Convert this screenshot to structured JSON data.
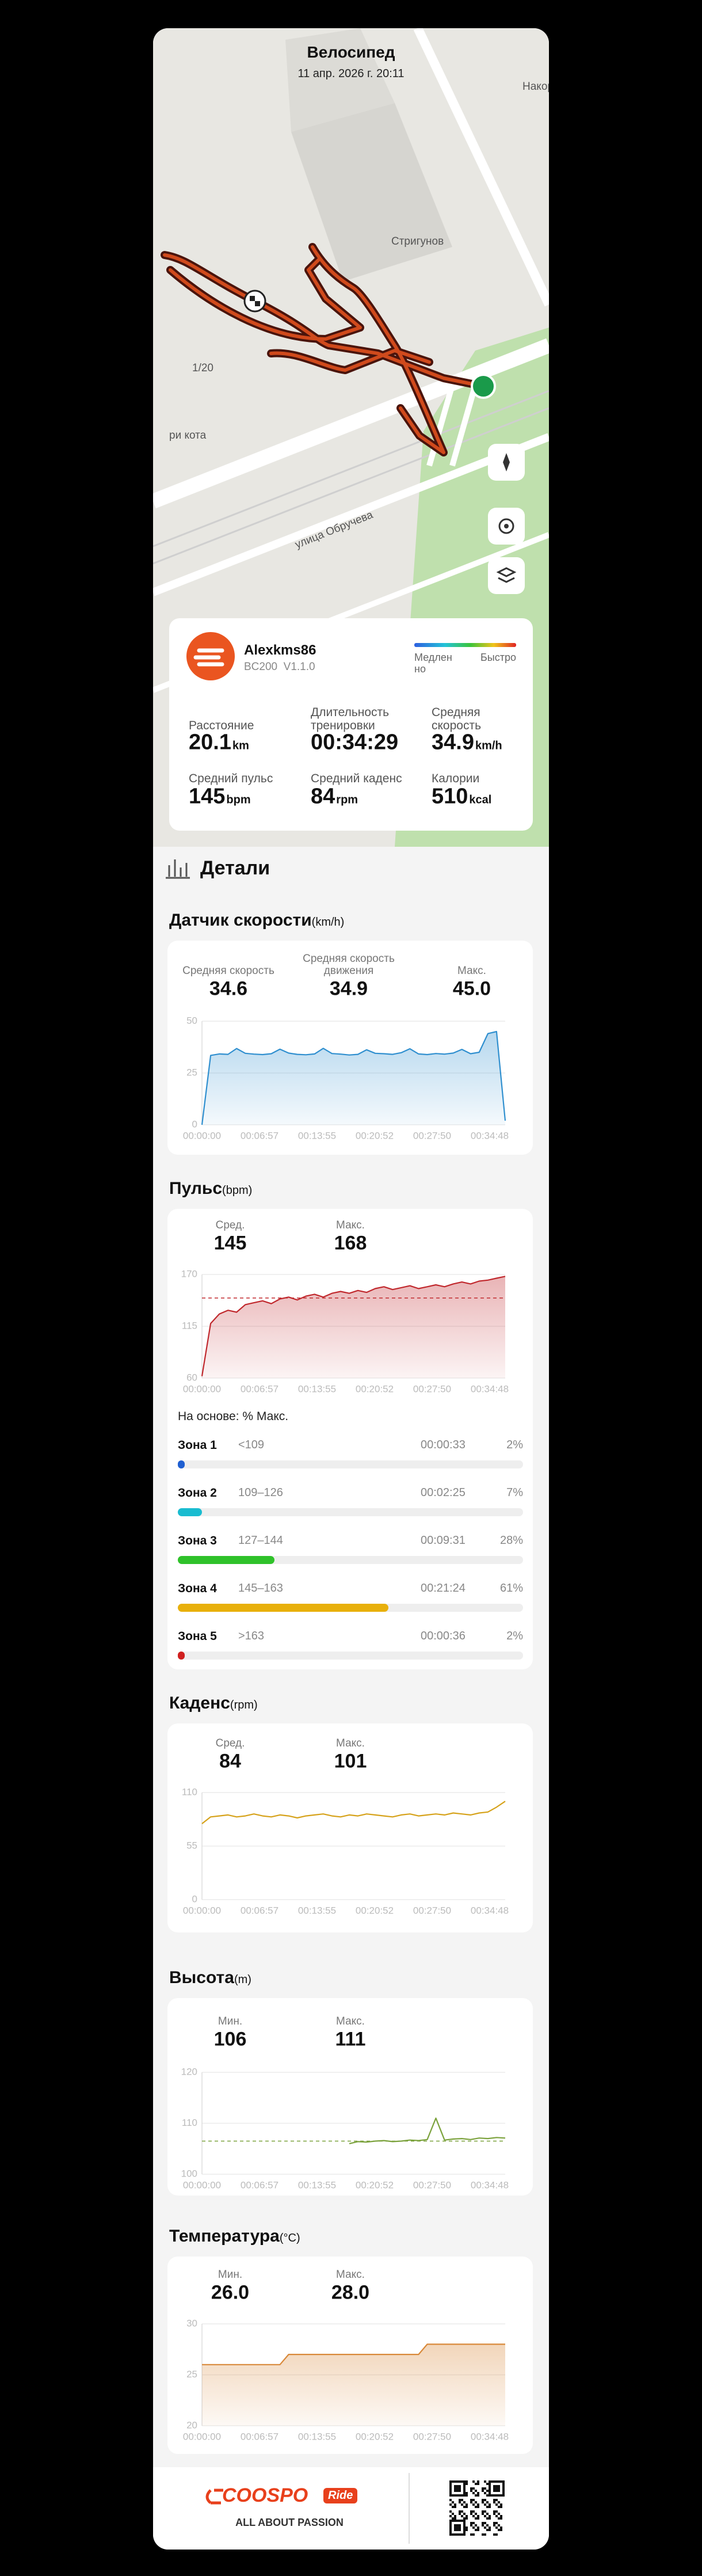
{
  "header": {
    "title": "Велосипед",
    "date": "11 апр. 2026 г. 20:11"
  },
  "map": {
    "labels": [
      "Стригунов",
      "улица Обручева",
      "1/20",
      "ри кота",
      "Накорм"
    ]
  },
  "summary": {
    "user": "Alexkms86",
    "device": "BC200  V1.1.0",
    "legend_slow": [
      "Медлен",
      "но"
    ],
    "legend_fast": "Быстро",
    "stats": [
      {
        "label": "Расстояние",
        "value": "20.1",
        "unit": "km"
      },
      {
        "label": "Длительность тренировки",
        "value": "00:34:29"
      },
      {
        "label": "Средняя скорость",
        "value": "34.9",
        "unit": "km/h"
      },
      {
        "label": "Средний пульс",
        "value": "145",
        "unit": "bpm"
      },
      {
        "label": "Средний каденс",
        "value": "84",
        "unit": "rpm"
      },
      {
        "label": "Калории",
        "value": "510",
        "unit": "kcal"
      }
    ]
  },
  "details_title": "Детали",
  "chart_data": [
    {
      "type": "area",
      "title": "Датчик скорости",
      "unit": "(km/h)",
      "color": "#2f8fcf",
      "stats": [
        {
          "label": "Средняя скорость",
          "value": "34.6"
        },
        {
          "label": "Средняя скорость движения",
          "value": "34.9"
        },
        {
          "label": "Макс.",
          "value": "45.0"
        }
      ],
      "x_labels": [
        "00:00:00",
        "00:06:57",
        "00:13:55",
        "00:20:52",
        "00:27:50",
        "00:34:48"
      ],
      "ylim": [
        0,
        50
      ],
      "yticks": [
        0,
        25,
        50
      ],
      "values": [
        0,
        33.5,
        34.2,
        34.0,
        36.8,
        34.5,
        34.1,
        33.9,
        34.3,
        36.5,
        34.6,
        34.0,
        33.8,
        34.2,
        36.9,
        34.4,
        34.1,
        33.7,
        34.0,
        36.2,
        34.5,
        34.3,
        34.0,
        34.8,
        36.7,
        34.2,
        33.9,
        34.4,
        34.1,
        34.6,
        36.4,
        34.3,
        35.0,
        44.0,
        45.0,
        2.0
      ]
    },
    {
      "type": "area",
      "title": "Пульс",
      "unit": "(bpm)",
      "color": "#c0282d",
      "stats": [
        {
          "label": "Сред.",
          "value": "145"
        },
        {
          "label": "Макс.",
          "value": "168"
        }
      ],
      "x_labels": [
        "00:00:00",
        "00:06:57",
        "00:13:55",
        "00:20:52",
        "00:27:50",
        "00:34:48"
      ],
      "ylim": [
        60,
        170
      ],
      "yticks": [
        60,
        115,
        170
      ],
      "ref_line": 145,
      "values": [
        62,
        118,
        128,
        132,
        130,
        138,
        140,
        142,
        139,
        144,
        146,
        143,
        147,
        149,
        146,
        150,
        152,
        150,
        153,
        151,
        155,
        157,
        154,
        156,
        158,
        155,
        157,
        159,
        157,
        160,
        162,
        160,
        163,
        164,
        166,
        168
      ]
    },
    {
      "type": "line",
      "title": "Каденс",
      "unit": "(rpm)",
      "color": "#d6a21a",
      "stats": [
        {
          "label": "Сред.",
          "value": "84"
        },
        {
          "label": "Макс.",
          "value": "101"
        }
      ],
      "x_labels": [
        "00:00:00",
        "00:06:57",
        "00:13:55",
        "00:20:52",
        "00:27:50",
        "00:34:48"
      ],
      "ylim": [
        0,
        110
      ],
      "yticks": [
        0,
        55,
        110
      ],
      "values": [
        78,
        85,
        86,
        87,
        85,
        86,
        88,
        86,
        85,
        87,
        86,
        84,
        86,
        87,
        88,
        86,
        85,
        87,
        86,
        88,
        87,
        86,
        85,
        87,
        88,
        86,
        87,
        88,
        87,
        89,
        88,
        87,
        89,
        90,
        95,
        101
      ]
    },
    {
      "type": "line",
      "title": "Высота",
      "unit": "(m)",
      "color": "#7ba23c",
      "stats": [
        {
          "label": "Мин.",
          "value": "106"
        },
        {
          "label": "Макс.",
          "value": "111"
        }
      ],
      "x_labels": [
        "00:00:00",
        "00:06:57",
        "00:13:55",
        "00:20:52",
        "00:27:50",
        "00:34:48"
      ],
      "ylim": [
        100,
        120
      ],
      "yticks": [
        100,
        110,
        120
      ],
      "ref_line": 106.5,
      "values": [
        null,
        null,
        null,
        null,
        null,
        null,
        null,
        null,
        null,
        null,
        null,
        null,
        null,
        null,
        null,
        null,
        null,
        106.0,
        106.4,
        106.3,
        106.5,
        106.6,
        106.4,
        106.5,
        106.7,
        106.6,
        106.8,
        111,
        106.7,
        106.9,
        107.0,
        106.8,
        107.1,
        107.0,
        107.2,
        107.1
      ]
    },
    {
      "type": "area",
      "title": "Температура",
      "unit": "(°C)",
      "color": "#d9893a",
      "stats": [
        {
          "label": "Мин.",
          "value": "26.0"
        },
        {
          "label": "Макс.",
          "value": "28.0"
        }
      ],
      "x_labels": [
        "00:00:00",
        "00:06:57",
        "00:13:55",
        "00:20:52",
        "00:27:50",
        "00:34:48"
      ],
      "ylim": [
        20,
        30
      ],
      "yticks": [
        20,
        25,
        30
      ],
      "values": [
        26,
        26,
        26,
        26,
        26,
        26,
        26,
        26,
        26,
        26,
        27,
        27,
        27,
        27,
        27,
        27,
        27,
        27,
        27,
        27,
        27,
        27,
        27,
        27,
        27,
        27,
        28,
        28,
        28,
        28,
        28,
        28,
        28,
        28,
        28,
        28
      ]
    }
  ],
  "zones": {
    "caption": "На основе: % Макс.",
    "items": [
      {
        "name": "Зона 1",
        "range": "<109",
        "time": "00:00:33",
        "percent": 2,
        "percent_label": "2%",
        "color": "#1f5fd1"
      },
      {
        "name": "Зона 2",
        "range": "109–126",
        "time": "00:02:25",
        "percent": 7,
        "percent_label": "7%",
        "color": "#19bcd0"
      },
      {
        "name": "Зона 3",
        "range": "127–144",
        "time": "00:09:31",
        "percent": 28,
        "percent_label": "28%",
        "color": "#2fc22a"
      },
      {
        "name": "Зона 4",
        "range": "145–163",
        "time": "00:21:24",
        "percent": 61,
        "percent_label": "61%",
        "color": "#e8b00c"
      },
      {
        "name": "Зона 5",
        "range": ">163",
        "time": "00:00:36",
        "percent": 2,
        "percent_label": "2%",
        "color": "#d0201f"
      }
    ]
  },
  "footer": {
    "brand": "COOSPO",
    "badge": "Ride",
    "slogan": "ALL ABOUT PASSION"
  }
}
